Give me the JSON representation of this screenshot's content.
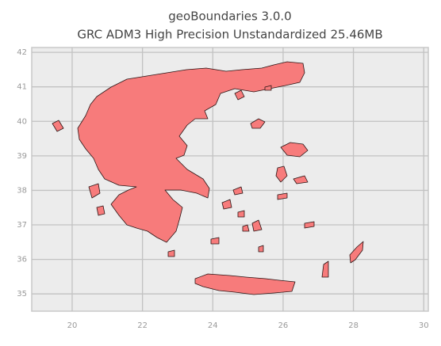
{
  "chart_data": {
    "type": "map",
    "title": "geoBoundaries 3.0.0",
    "subtitle": "GRC ADM3 High Precision Unstandardized 25.46MB",
    "xlim": [
      18.85,
      30.13
    ],
    "ylim": [
      34.5,
      42.14
    ],
    "xticks": [
      20,
      22,
      24,
      26,
      28,
      30
    ],
    "yticks": [
      35,
      36,
      37,
      38,
      39,
      40,
      41,
      42
    ],
    "grid": true,
    "color": "#f77b7b"
  }
}
